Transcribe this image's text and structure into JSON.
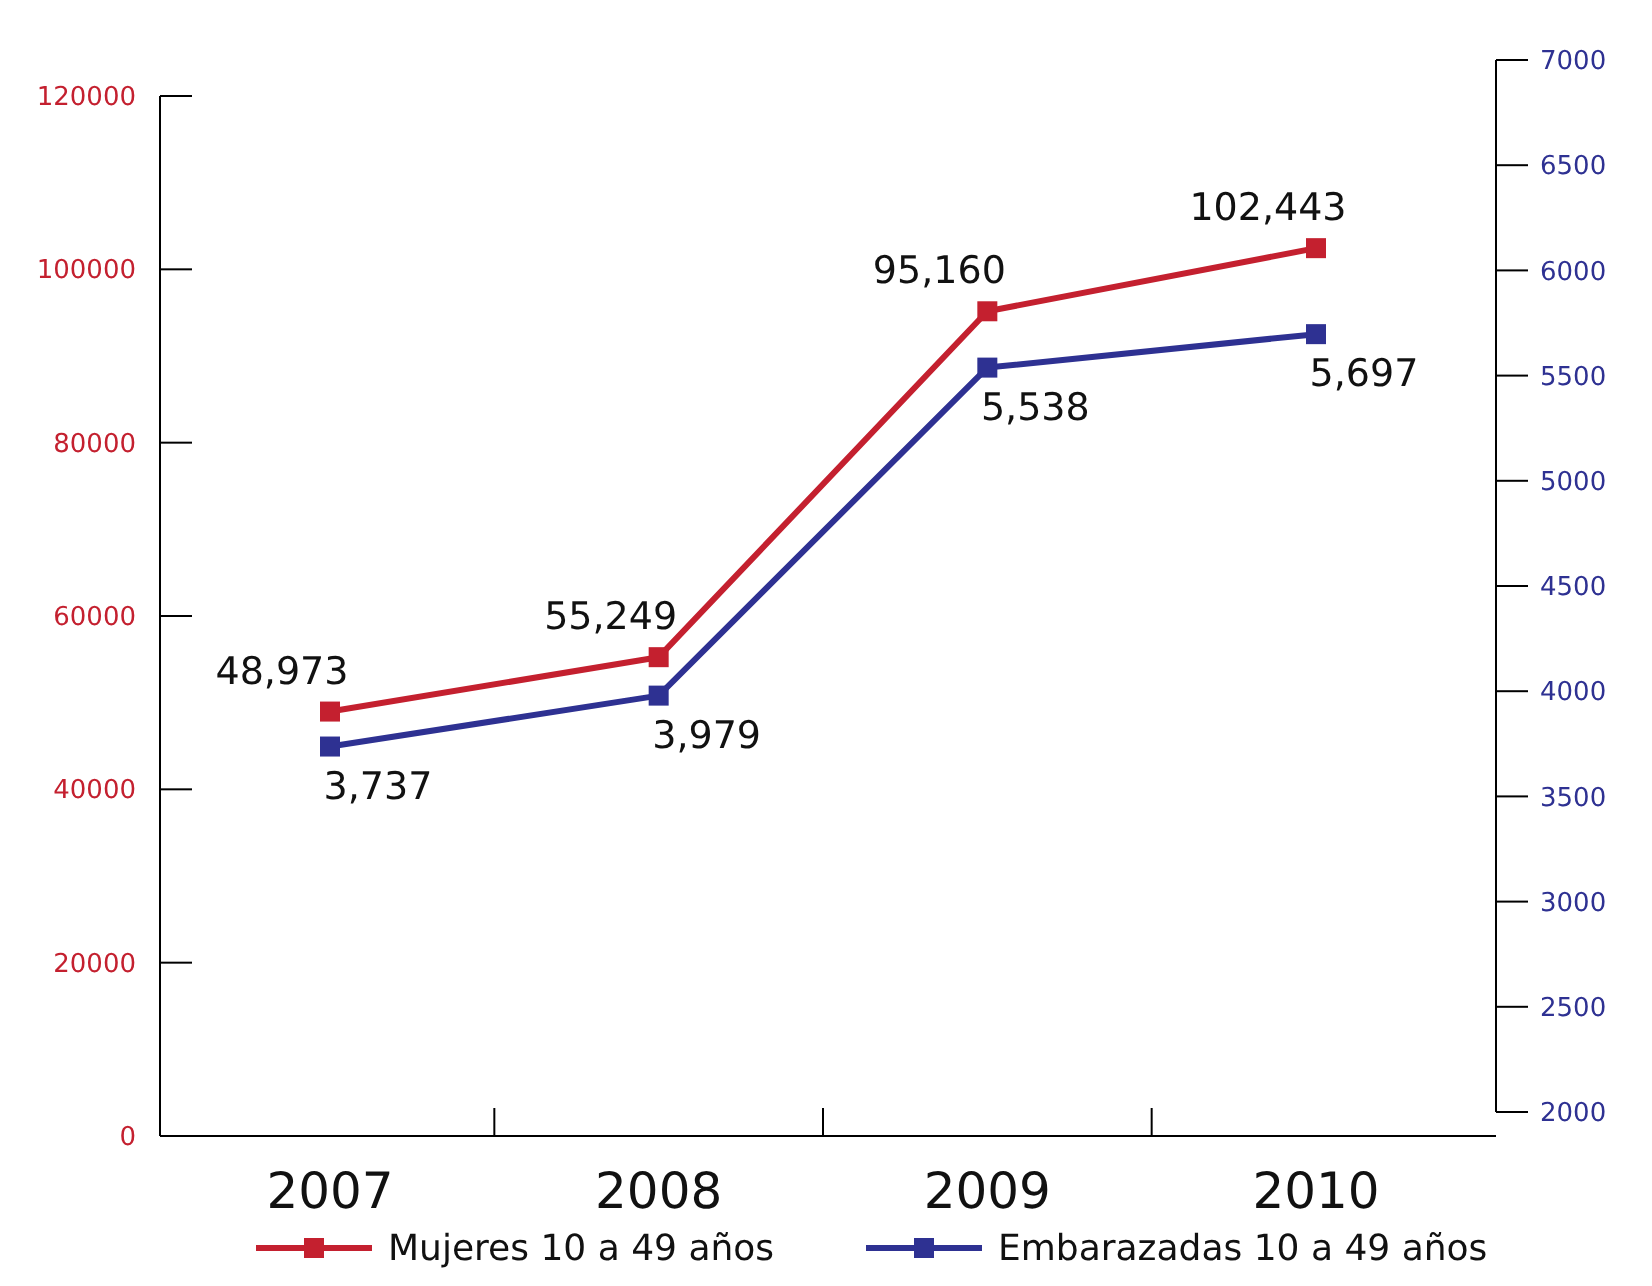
{
  "chart_data": {
    "type": "line",
    "categories": [
      "2007",
      "2008",
      "2009",
      "2010"
    ],
    "series": [
      {
        "name": "Mujeres 10 a 49 años",
        "color": "#c4202f",
        "values": [
          48973,
          55249,
          95160,
          102443
        ],
        "value_labels": [
          "48,973",
          "55,249",
          "95,160",
          "102,443"
        ]
      },
      {
        "name": "Embarazadas 10 a 49 años",
        "color": "#2e3192",
        "axis": "y2",
        "values": [
          3737,
          3979,
          5538,
          5697
        ],
        "value_labels": [
          "3,737",
          "3,979",
          "5,538",
          "5,697"
        ]
      }
    ],
    "ylim": [
      0,
      120000
    ],
    "yticks": [
      0,
      20000,
      40000,
      60000,
      80000,
      100000,
      120000
    ],
    "y2lim": [
      2000,
      7000
    ],
    "y2ticks": [
      2000,
      2500,
      3000,
      3500,
      4000,
      4500,
      5000,
      5500,
      6000,
      6500,
      7000
    ],
    "legend": "bottom",
    "marker": "square",
    "line_style": "solid",
    "grid": false
  }
}
